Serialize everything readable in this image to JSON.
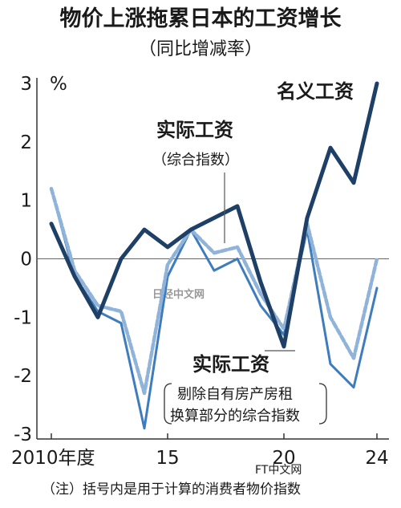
{
  "chart_data": {
    "type": "line",
    "title": "物价上涨拖累日本的工资增长",
    "subtitle": "（同比增减率）",
    "y_unit": "%",
    "ylim": [
      -3,
      3
    ],
    "y_ticks": [
      "3",
      "2",
      "1",
      "0",
      "-1",
      "-2",
      "-3"
    ],
    "x_range": [
      2010,
      2024
    ],
    "x_tick_labels": [
      {
        "x": 2010,
        "label": "2010年度"
      },
      {
        "x": 2015,
        "label": "15"
      },
      {
        "x": 2020,
        "label": "20"
      },
      {
        "x": 2024,
        "label": "24"
      }
    ],
    "grid": false,
    "series": [
      {
        "name": "名义工资",
        "color": "#1e3f66",
        "style": "solid-thick",
        "x": [
          2010,
          2011,
          2012,
          2013,
          2014,
          2015,
          2016,
          2017,
          2018,
          2019,
          2020,
          2021,
          2022,
          2023,
          2024
        ],
        "values": [
          0.6,
          -0.3,
          -1.0,
          0.0,
          0.5,
          0.2,
          0.5,
          0.7,
          0.9,
          -0.4,
          -1.5,
          0.7,
          1.9,
          1.3,
          3.0
        ]
      },
      {
        "name": "实际工资",
        "note": "（综合指数）",
        "color": "#8fb3d9",
        "style": "dashed",
        "x": [
          2010,
          2011,
          2012,
          2013,
          2014,
          2015,
          2016,
          2017,
          2018,
          2019,
          2020,
          2021,
          2022,
          2023,
          2024
        ],
        "values": [
          1.2,
          -0.2,
          -0.8,
          -0.9,
          -2.3,
          -0.1,
          0.5,
          0.1,
          0.2,
          -0.6,
          -1.2,
          0.6,
          -1.0,
          -1.7,
          0.0
        ]
      },
      {
        "name": "实际工资",
        "note": "剔除自有房产房租换算部分的综合指数",
        "note_lines": [
          "剔除自有房产房租",
          "换算部分的综合指数"
        ],
        "color": "#3f7cbd",
        "style": "solid",
        "x": [
          2010,
          2011,
          2012,
          2013,
          2014,
          2015,
          2016,
          2017,
          2018,
          2019,
          2020,
          2021,
          2022,
          2023,
          2024
        ],
        "values": [
          1.2,
          -0.3,
          -0.9,
          -1.1,
          -2.9,
          -0.3,
          0.5,
          -0.2,
          0.0,
          -0.8,
          -1.3,
          0.5,
          -1.8,
          -2.2,
          -0.5
        ]
      }
    ]
  },
  "footnote": "（注）括号内是用于计算的消费者物价指数",
  "watermarks": [
    "日经中文网",
    "FT中文网"
  ]
}
